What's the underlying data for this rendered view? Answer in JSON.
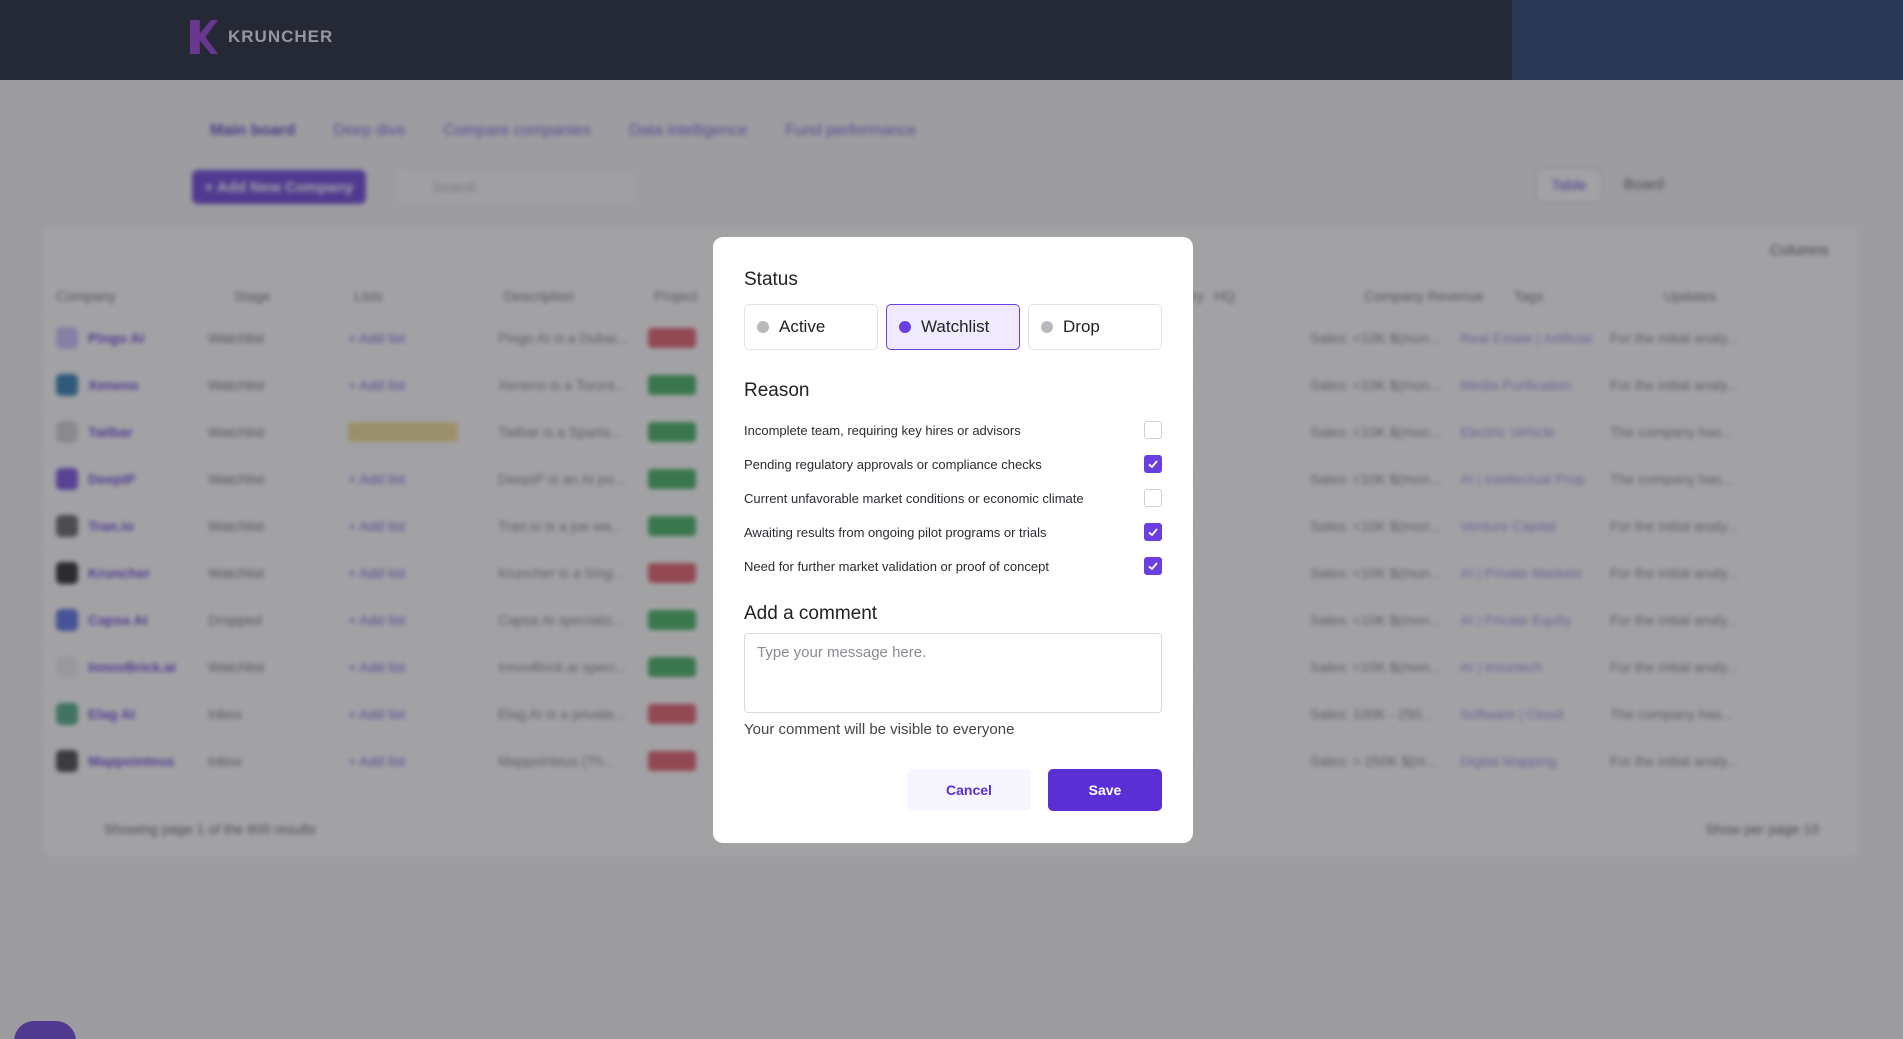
{
  "app": {
    "brand": "KRUNCHER",
    "tabs": [
      "Main board",
      "Deep dive",
      "Compare companies",
      "Data intelligence",
      "Fund performance"
    ],
    "add_company_label": "+ Add New Company",
    "search_placeholder": "Search",
    "view_table_label": "Table",
    "view_board_label": "Board",
    "columns_label": "Columns",
    "table_headers": [
      "Company",
      "Stage",
      "Lists",
      "Description",
      "Project",
      "Industry",
      "HQ",
      "Company Revenue",
      "Tags",
      "Updates"
    ],
    "rows": [
      {
        "name": "Pingo AI",
        "stage": "Watchlist",
        "list": "+ Add list",
        "desc": "Pingo AI is a Dubai...",
        "revenue": "Sales: <10K $(mon...",
        "tags": "Real Estate | Artificial",
        "update": "For the initial analy..."
      },
      {
        "name": "Xeneno",
        "stage": "Watchlist",
        "list": "+ Add list",
        "desc": "Xeneno is a Toront...",
        "revenue": "Sales: <10K $(mon...",
        "tags": "Media Purification",
        "update": "For the initial analy..."
      },
      {
        "name": "Tailbar",
        "stage": "Watchlist",
        "list": "",
        "desc": "Tailbar is a Sparta...",
        "revenue": "Sales: <10K $(mon...",
        "tags": "Electric Vehicle",
        "update": "The company has..."
      },
      {
        "name": "DeepIP",
        "stage": "Watchlist",
        "list": "+ Add list",
        "desc": "DeepIP is an AI po...",
        "revenue": "Sales: <10K $(mon...",
        "tags": "AI | Intellectual Prop",
        "update": "The company has..."
      },
      {
        "name": "Tran.io",
        "stage": "Watchlist",
        "list": "+ Add list",
        "desc": "Tran.io is a joe wa...",
        "revenue": "Sales: <10K $(mon...",
        "tags": "Venture Capital",
        "update": "For the initial analy..."
      },
      {
        "name": "Kruncher",
        "stage": "Watchlist",
        "list": "+ Add list",
        "desc": "Kruncher is a Sing...",
        "revenue": "Sales: <10K $(mon...",
        "tags": "AI | Private Markets",
        "update": "For the initial analy..."
      },
      {
        "name": "Capsa AI",
        "stage": "Dropped",
        "list": "+ Add list",
        "desc": "Capsa AI specializ...",
        "revenue": "Sales: <10K $(mon...",
        "tags": "AI | Private Equity",
        "update": "For the initial analy..."
      },
      {
        "name": "InnovBrick.ai",
        "stage": "Watchlist",
        "list": "+ Add list",
        "desc": "InnovBrick.ai speci...",
        "revenue": "Sales: <10K $(mon...",
        "tags": "AI | Insurtech",
        "update": "For the initial analy..."
      },
      {
        "name": "Elag AI",
        "stage": "Inbox",
        "list": "+ Add list",
        "desc": "Elag AI is a private...",
        "revenue": "Sales: 100K - 250...",
        "tags": "Software | Cloud",
        "update": "The company has..."
      },
      {
        "name": "Mappointeus",
        "stage": "Inbox",
        "list": "+ Add list",
        "desc": "Mappointeus (Th...",
        "revenue": "Sales: > 250K $(m...",
        "tags": "Digital Mapping",
        "update": "For the initial analy..."
      }
    ],
    "footer_left": "Showing page 1 of the 600 results",
    "footer_right": "Show per page 10"
  },
  "modal": {
    "status_title": "Status",
    "status_options": [
      {
        "label": "Active",
        "selected": false
      },
      {
        "label": "Watchlist",
        "selected": true
      },
      {
        "label": "Drop",
        "selected": false
      }
    ],
    "reason_title": "Reason",
    "reasons": [
      {
        "label": "Incomplete team, requiring key hires or advisors",
        "checked": false
      },
      {
        "label": "Pending regulatory approvals or compliance checks",
        "checked": true
      },
      {
        "label": "Current unfavorable market conditions or economic climate",
        "checked": false
      },
      {
        "label": "Awaiting results from ongoing pilot programs or trials",
        "checked": true
      },
      {
        "label": "Need for further market validation or proof of concept",
        "checked": true
      }
    ],
    "comment_title": "Add a comment",
    "comment_placeholder": "Type your message here.",
    "comment_value": "",
    "comment_hint": "Your comment will be visible to everyone",
    "cancel_label": "Cancel",
    "save_label": "Save"
  },
  "colors": {
    "accent": "#5b2fd6",
    "selected_bg": "#efeaff",
    "topbar": "#050b1e"
  }
}
